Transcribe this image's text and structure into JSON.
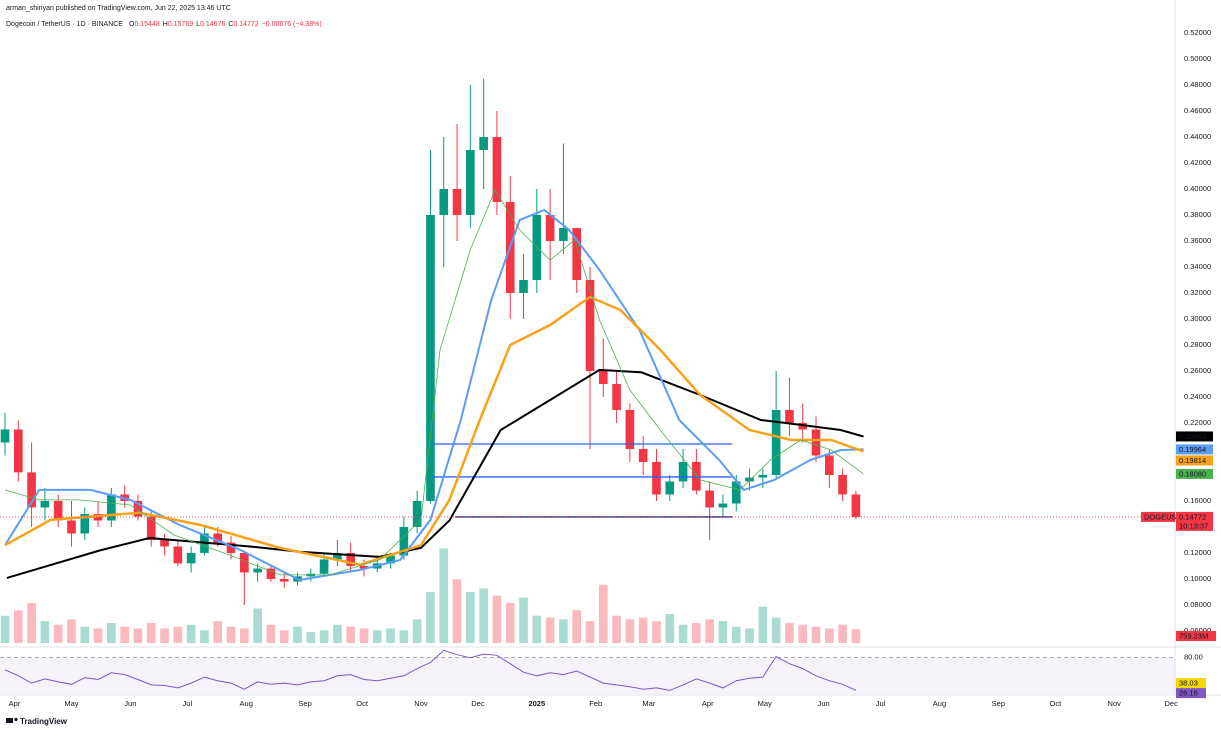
{
  "header": {
    "publisher": "arman_shiriyan published on TradingView.com, Jun 22, 2025 13:46 UTC",
    "symbol": "Dogecoin / TetherUS · 1D · BINANCE",
    "ohlc": [
      {
        "key": "O",
        "value": "0.15448"
      },
      {
        "key": "H",
        "value": "0.15769"
      },
      {
        "key": "L",
        "value": "0.14676"
      },
      {
        "key": "C",
        "value": "0.14772"
      }
    ],
    "change": "−0.00676 (−4.38%)"
  },
  "footer": "TradingView",
  "chart_data": [
    {
      "type": "candlestick",
      "up_color": "#089981",
      "down_color": "#f23645",
      "x": [
        -5,
        2,
        9,
        16,
        23,
        30,
        37,
        44,
        51,
        58,
        65,
        72,
        79,
        86,
        93,
        100,
        107,
        114,
        121,
        128,
        135,
        142,
        149,
        156,
        163,
        170,
        177,
        184,
        191,
        198,
        205,
        212,
        219,
        226,
        233,
        240,
        247,
        254,
        261,
        268,
        275,
        282,
        289,
        296,
        303,
        310,
        317,
        324,
        331,
        338,
        345,
        352,
        359,
        366,
        373,
        380,
        387,
        394,
        401,
        408,
        415,
        422,
        429,
        436,
        443
      ],
      "open": [
        0.205,
        0.215,
        0.182,
        0.155,
        0.16,
        0.145,
        0.135,
        0.15,
        0.145,
        0.165,
        0.16,
        0.148,
        0.13,
        0.125,
        0.112,
        0.12,
        0.135,
        0.128,
        0.12,
        0.105,
        0.108,
        0.1,
        0.098,
        0.102,
        0.104,
        0.115,
        0.12,
        0.11,
        0.108,
        0.112,
        0.118,
        0.14,
        0.16,
        0.38,
        0.4,
        0.38,
        0.43,
        0.44,
        0.39,
        0.32,
        0.33,
        0.38,
        0.36,
        0.37,
        0.33,
        0.26,
        0.25,
        0.23,
        0.2,
        0.19,
        0.165,
        0.175,
        0.19,
        0.168,
        0.155,
        0.158,
        0.175,
        0.178,
        0.18,
        0.23,
        0.22,
        0.215,
        0.195,
        0.18,
        0.165
      ],
      "high": [
        0.228,
        0.222,
        0.205,
        0.17,
        0.165,
        0.16,
        0.155,
        0.16,
        0.17,
        0.172,
        0.165,
        0.152,
        0.135,
        0.13,
        0.125,
        0.14,
        0.14,
        0.133,
        0.122,
        0.112,
        0.11,
        0.105,
        0.105,
        0.108,
        0.12,
        0.13,
        0.128,
        0.115,
        0.118,
        0.12,
        0.148,
        0.168,
        0.43,
        0.44,
        0.45,
        0.48,
        0.485,
        0.46,
        0.41,
        0.35,
        0.4,
        0.4,
        0.435,
        0.37,
        0.34,
        0.285,
        0.26,
        0.235,
        0.21,
        0.2,
        0.18,
        0.2,
        0.2,
        0.175,
        0.165,
        0.18,
        0.185,
        0.185,
        0.26,
        0.255,
        0.235,
        0.225,
        0.2,
        0.185,
        0.168
      ],
      "low": [
        0.195,
        0.175,
        0.14,
        0.145,
        0.14,
        0.125,
        0.13,
        0.14,
        0.14,
        0.155,
        0.145,
        0.125,
        0.118,
        0.11,
        0.105,
        0.118,
        0.125,
        0.115,
        0.08,
        0.098,
        0.098,
        0.093,
        0.095,
        0.098,
        0.102,
        0.11,
        0.105,
        0.102,
        0.105,
        0.108,
        0.115,
        0.135,
        0.158,
        0.34,
        0.36,
        0.37,
        0.4,
        0.38,
        0.3,
        0.3,
        0.32,
        0.33,
        0.35,
        0.32,
        0.2,
        0.24,
        0.22,
        0.19,
        0.18,
        0.16,
        0.16,
        0.17,
        0.165,
        0.13,
        0.148,
        0.152,
        0.168,
        0.17,
        0.178,
        0.21,
        0.205,
        0.19,
        0.17,
        0.16,
        0.146
      ],
      "close": [
        0.215,
        0.182,
        0.155,
        0.16,
        0.145,
        0.135,
        0.15,
        0.145,
        0.165,
        0.16,
        0.148,
        0.13,
        0.125,
        0.112,
        0.12,
        0.135,
        0.128,
        0.12,
        0.105,
        0.108,
        0.1,
        0.098,
        0.102,
        0.104,
        0.115,
        0.12,
        0.11,
        0.108,
        0.112,
        0.118,
        0.14,
        0.16,
        0.38,
        0.4,
        0.38,
        0.43,
        0.44,
        0.39,
        0.32,
        0.33,
        0.38,
        0.36,
        0.37,
        0.33,
        0.26,
        0.25,
        0.23,
        0.2,
        0.19,
        0.165,
        0.175,
        0.19,
        0.168,
        0.155,
        0.158,
        0.175,
        0.178,
        0.18,
        0.23,
        0.22,
        0.215,
        0.195,
        0.18,
        0.165,
        0.14772
      ],
      "volume": {
        "values": [
          1500,
          1800,
          2200,
          1200,
          1000,
          1300,
          900,
          800,
          1100,
          900,
          800,
          1100,
          800,
          900,
          1000,
          700,
          1200,
          900,
          800,
          1900,
          1000,
          700,
          900,
          600,
          700,
          1000,
          900,
          800,
          700,
          800,
          700,
          1300,
          2800,
          5200,
          3500,
          2800,
          3000,
          2600,
          2200,
          2500,
          1500,
          1400,
          1300,
          1800,
          1200,
          3200,
          1500,
          1300,
          1400,
          1200,
          1600,
          1000,
          1100,
          1300,
          1200,
          900,
          800,
          2000,
          1400,
          1100,
          1000,
          900,
          800,
          1000,
          759.23
        ],
        "ylim": [
          0,
          5500
        ],
        "last_label": "759.23M"
      },
      "series": [
        {
          "color": "#000000",
          "width": 2,
          "x": [
            -4,
            45,
            71,
            124,
            150,
            192,
            214,
            229,
            256,
            282,
            308,
            330,
            361,
            393,
            414,
            435,
            447
          ],
          "values": [
            0.1008,
            0.122,
            0.1315,
            0.125,
            0.121,
            0.117,
            0.124,
            0.145,
            0.2146,
            0.2377,
            0.2608,
            0.259,
            0.2415,
            0.2223,
            0.2185,
            0.2146,
            0.20963
          ]
        },
        {
          "color": "#5b9cf6",
          "width": 2,
          "x": [
            -5,
            13,
            40,
            61,
            87,
            119,
            150,
            182,
            203,
            219,
            235,
            251,
            266,
            279,
            292,
            308,
            329,
            350,
            371,
            384,
            400,
            419,
            435,
            447
          ],
          "values": [
            0.126,
            0.1685,
            0.1685,
            0.1608,
            0.1415,
            0.1223,
            0.0992,
            0.107,
            0.1146,
            0.1454,
            0.2223,
            0.3146,
            0.3762,
            0.3838,
            0.3685,
            0.3377,
            0.2915,
            0.2223,
            0.1915,
            0.1685,
            0.1762,
            0.1915,
            0.1992,
            0.19964
          ]
        },
        {
          "color": "#f7a21b",
          "width": 2.5,
          "x": [
            -5,
            19,
            66,
            98,
            140,
            182,
            214,
            229,
            245,
            261,
            282,
            303,
            319,
            340,
            361,
            387,
            409,
            430,
            447
          ],
          "values": [
            0.126,
            0.1454,
            0.151,
            0.1415,
            0.1238,
            0.111,
            0.126,
            0.1608,
            0.2223,
            0.28,
            0.2954,
            0.3169,
            0.3069,
            0.2762,
            0.2415,
            0.2146,
            0.2069,
            0.2069,
            0.19814
          ]
        },
        {
          "color": "#4caf50",
          "width": 0.8,
          "x": [
            -5,
            13,
            34,
            61,
            84,
            113,
            140,
            166,
            192,
            214,
            224,
            240,
            253,
            266,
            282,
            295,
            308,
            324,
            340,
            361,
            382,
            398,
            414,
            430,
            447
          ],
          "values": [
            0.1685,
            0.1608,
            0.1608,
            0.1569,
            0.1338,
            0.1185,
            0.1031,
            0.1031,
            0.1146,
            0.1454,
            0.2762,
            0.3531,
            0.3992,
            0.3685,
            0.3454,
            0.3608,
            0.2992,
            0.2454,
            0.2146,
            0.1762,
            0.1685,
            0.1915,
            0.2069,
            0.1992,
            0.1808
          ],
          "last_value_label": "0.18080"
        }
      ],
      "levels": [
        {
          "value": 0.2038,
          "x": [
            220,
            378
          ],
          "color": "#2962ff"
        },
        {
          "value": 0.1785,
          "x": [
            220,
            378
          ],
          "color": "#2962ff"
        },
        {
          "value": 0.1477,
          "x": [
            232,
            378
          ],
          "color": "#1a237e"
        }
      ],
      "price_label": {
        "name": "DOGEUSDT",
        "value": 0.14772,
        "countdown": "10:13:37"
      },
      "xlim": [
        -5,
        611
      ],
      "ylim": [
        0.0492,
        0.5323
      ],
      "yticks": [
        {
          "value": 0.52,
          "label": "0.52000"
        },
        {
          "value": 0.5,
          "label": "0.50000"
        },
        {
          "value": 0.48,
          "label": "0.48000"
        },
        {
          "value": 0.46,
          "label": "0.46000"
        },
        {
          "value": 0.44,
          "label": "0.44000"
        },
        {
          "value": 0.42,
          "label": "0.42000"
        },
        {
          "value": 0.4,
          "label": "0.40000"
        },
        {
          "value": 0.38,
          "label": "0.38000"
        },
        {
          "value": 0.36,
          "label": "0.36000"
        },
        {
          "value": 0.34,
          "label": "0.34000"
        },
        {
          "value": 0.32,
          "label": "0.32000"
        },
        {
          "value": 0.3,
          "label": "0.30000"
        },
        {
          "value": 0.28,
          "label": "0.28000"
        },
        {
          "value": 0.26,
          "label": "0.26000"
        },
        {
          "value": 0.24,
          "label": "0.24000"
        },
        {
          "value": 0.22,
          "label": "0.22000"
        },
        {
          "value": 0.16,
          "label": "0.16000"
        },
        {
          "value": 0.12,
          "label": "0.12000"
        },
        {
          "value": 0.1,
          "label": "0.10000"
        },
        {
          "value": 0.08,
          "label": "0.08000"
        },
        {
          "value": 0.06,
          "label": "0.06000"
        }
      ],
      "xticks": [
        {
          "value": 0,
          "label": "Apr"
        },
        {
          "value": 30,
          "label": "May"
        },
        {
          "value": 61,
          "label": "Jun"
        },
        {
          "value": 91,
          "label": "Jul"
        },
        {
          "value": 122,
          "label": "Aug"
        },
        {
          "value": 153,
          "label": "Sep"
        },
        {
          "value": 183,
          "label": "Oct"
        },
        {
          "value": 214,
          "label": "Nov"
        },
        {
          "value": 244,
          "label": "Dec"
        },
        {
          "value": 275,
          "label": "2025"
        },
        {
          "value": 306,
          "label": "Feb"
        },
        {
          "value": 334,
          "label": "Mar"
        },
        {
          "value": 365,
          "label": "Apr"
        },
        {
          "value": 395,
          "label": "May"
        },
        {
          "value": 426,
          "label": "Jun"
        },
        {
          "value": 456,
          "label": "Jul"
        },
        {
          "value": 487,
          "label": "Aug"
        },
        {
          "value": 518,
          "label": "Sep"
        },
        {
          "value": 548,
          "label": "Oct"
        },
        {
          "value": 579,
          "label": "Nov"
        },
        {
          "value": 609,
          "label": "Dec"
        }
      ]
    },
    {
      "type": "line",
      "color": "#7e57c2",
      "ma_color": "#f5d600",
      "x": [
        -5,
        2,
        9,
        16,
        23,
        30,
        37,
        44,
        51,
        58,
        65,
        72,
        79,
        86,
        93,
        100,
        107,
        114,
        121,
        128,
        135,
        142,
        149,
        156,
        163,
        170,
        177,
        184,
        191,
        198,
        205,
        212,
        219,
        226,
        233,
        240,
        247,
        254,
        261,
        268,
        275,
        282,
        289,
        296,
        303,
        310,
        317,
        324,
        331,
        338,
        345,
        352,
        359,
        366,
        373,
        380,
        387,
        394,
        401,
        408,
        415,
        422,
        429,
        436,
        443
      ],
      "values": [
        60,
        50,
        38,
        45,
        40,
        36,
        47,
        44,
        55,
        52,
        44,
        35,
        34,
        30,
        38,
        48,
        42,
        38,
        28,
        40,
        36,
        38,
        35,
        40,
        42,
        50,
        52,
        44,
        42,
        46,
        50,
        62,
        72,
        92,
        85,
        80,
        86,
        84,
        70,
        56,
        50,
        55,
        52,
        58,
        48,
        38,
        35,
        32,
        28,
        30,
        26,
        35,
        45,
        38,
        30,
        42,
        46,
        48,
        82,
        70,
        62,
        50,
        42,
        36,
        26.16
      ],
      "ma_last": 38.03,
      "xlim": [
        -5,
        611
      ],
      "ylim": [
        20,
        96
      ],
      "yticks": [
        {
          "value": 80,
          "label": "80.00"
        }
      ]
    }
  ]
}
